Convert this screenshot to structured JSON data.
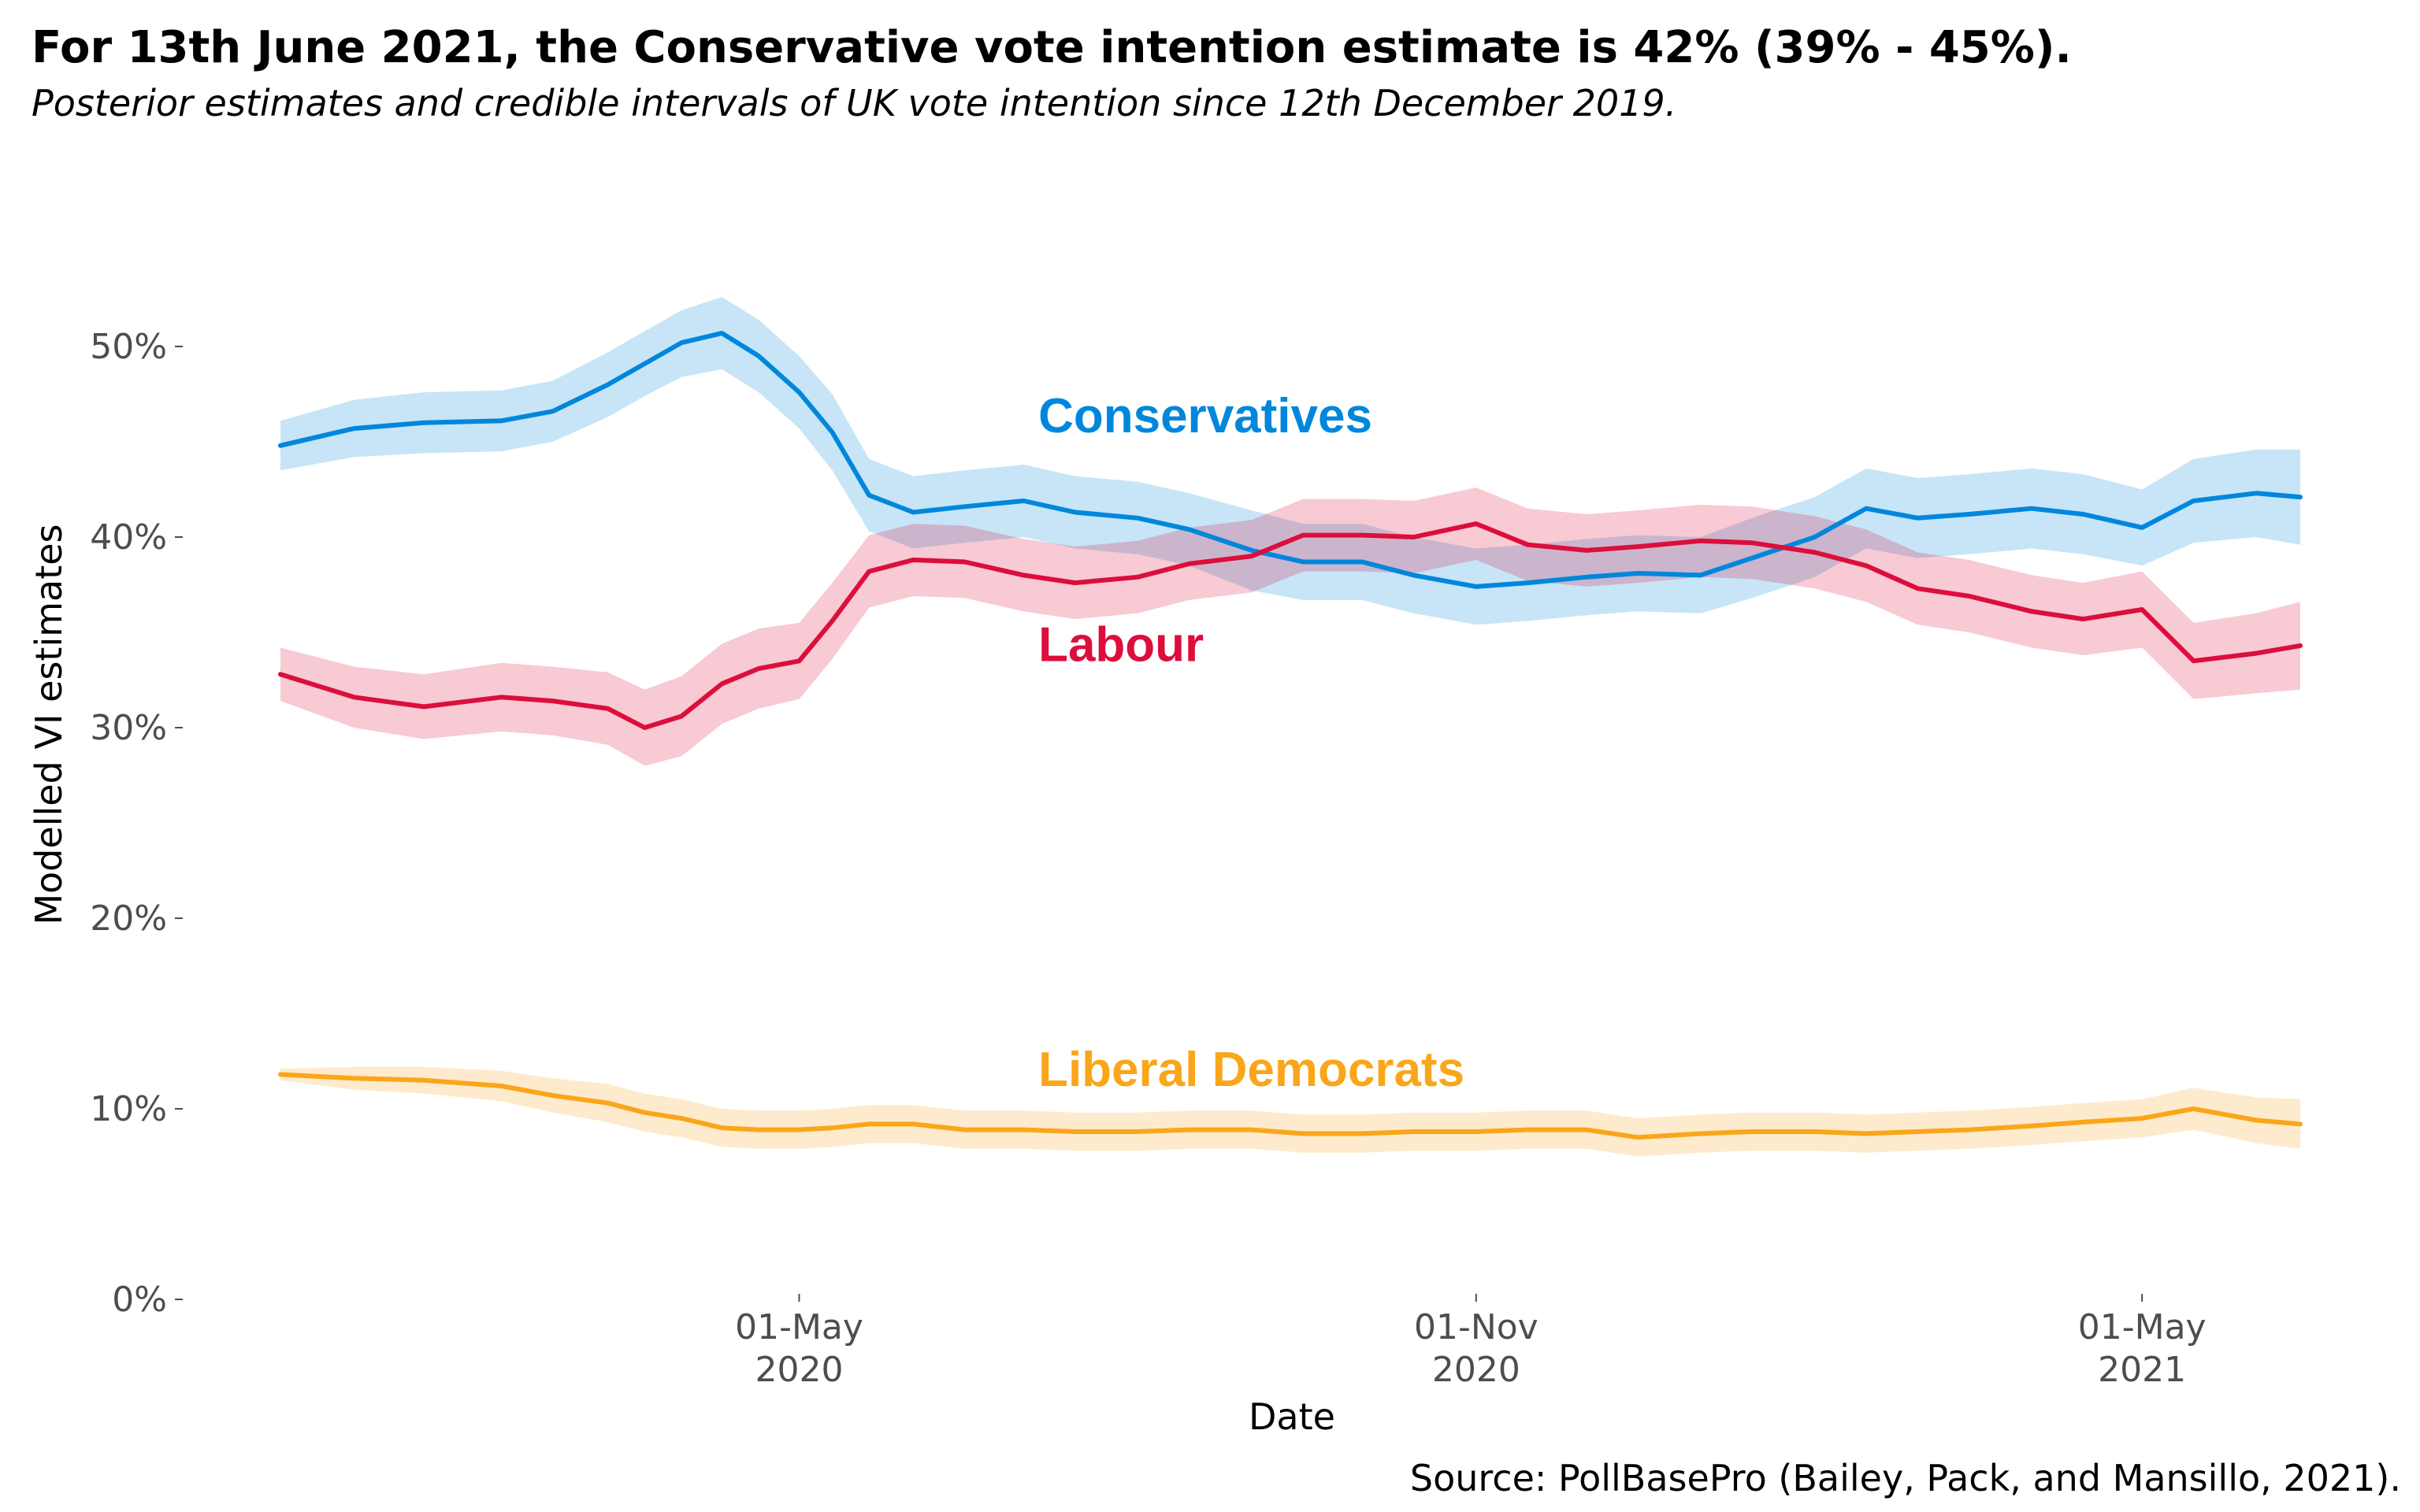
{
  "header": {
    "title": "For 13th June 2021, the Conservative vote intention estimate is 42% (39% - 45%).",
    "subtitle": "Posterior estimates and credible intervals of UK vote intention since 12th December 2019."
  },
  "footer": {
    "source": "Source: PollBasePro (Bailey, Pack, and Mansillo, 2021)."
  },
  "chart_data": {
    "type": "line",
    "title": "For 13th June 2021, the Conservative vote intention estimate is 42% (39% - 45%).",
    "subtitle": "Posterior estimates and credible intervals of UK vote intention since 12th December 2019.",
    "xlabel": "Date",
    "ylabel": "Modelled VI estimates",
    "xlim": [
      "2019-12-12",
      "2021-06-13"
    ],
    "ylim": [
      0,
      55
    ],
    "grid": false,
    "legend": "none",
    "y_ticks": [
      {
        "value": 0,
        "label": "0%"
      },
      {
        "value": 10,
        "label": "10%"
      },
      {
        "value": 20,
        "label": "20%"
      },
      {
        "value": 30,
        "label": "30%"
      },
      {
        "value": 40,
        "label": "40%"
      },
      {
        "value": 50,
        "label": "50%"
      }
    ],
    "x_ticks": [
      {
        "date": "2020-05-01",
        "label_line1": "01-May",
        "label_line2": "2020"
      },
      {
        "date": "2020-11-01",
        "label_line1": "01-Nov",
        "label_line2": "2020"
      },
      {
        "date": "2021-05-01",
        "label_line1": "01-May",
        "label_line2": "2021"
      }
    ],
    "series": [
      {
        "name": "Conservatives",
        "color": "#0087DC",
        "label_position": {
          "date": "2020-07-05",
          "value": 45.5
        },
        "x": [
          "2019-12-12",
          "2020-01-01",
          "2020-01-20",
          "2020-02-10",
          "2020-02-24",
          "2020-03-10",
          "2020-03-20",
          "2020-03-30",
          "2020-04-10",
          "2020-04-20",
          "2020-05-01",
          "2020-05-10",
          "2020-05-20",
          "2020-06-01",
          "2020-06-15",
          "2020-07-01",
          "2020-07-15",
          "2020-08-01",
          "2020-08-15",
          "2020-09-01",
          "2020-09-15",
          "2020-10-01",
          "2020-10-15",
          "2020-11-01",
          "2020-11-15",
          "2020-12-01",
          "2020-12-15",
          "2021-01-01",
          "2021-01-15",
          "2021-02-01",
          "2021-02-15",
          "2021-03-01",
          "2021-03-15",
          "2021-04-01",
          "2021-04-15",
          "2021-05-01",
          "2021-05-15",
          "2021-06-01",
          "2021-06-13"
        ],
        "values": [
          44.8,
          45.7,
          46.0,
          46.1,
          46.6,
          48.0,
          49.1,
          50.2,
          50.7,
          49.5,
          47.6,
          45.5,
          42.2,
          41.3,
          41.6,
          41.9,
          41.3,
          41.0,
          40.4,
          39.3,
          38.7,
          38.7,
          38.0,
          37.4,
          37.6,
          37.9,
          38.1,
          38.0,
          38.9,
          40.0,
          41.5,
          41.0,
          41.2,
          41.5,
          41.2,
          40.5,
          41.9,
          42.3,
          42.1
        ],
        "lower": [
          43.5,
          44.2,
          44.4,
          44.5,
          45.0,
          46.3,
          47.4,
          48.4,
          48.8,
          47.6,
          45.7,
          43.5,
          40.3,
          39.4,
          39.7,
          40.0,
          39.4,
          39.1,
          38.5,
          37.2,
          36.7,
          36.7,
          36.0,
          35.4,
          35.6,
          35.9,
          36.1,
          36.0,
          36.8,
          37.9,
          39.4,
          38.9,
          39.1,
          39.4,
          39.1,
          38.5,
          39.7,
          40.0,
          39.6
        ],
        "upper": [
          46.1,
          47.2,
          47.6,
          47.7,
          48.2,
          49.7,
          50.8,
          51.9,
          52.6,
          51.4,
          49.5,
          47.5,
          44.1,
          43.2,
          43.5,
          43.8,
          43.2,
          42.9,
          42.3,
          41.4,
          40.7,
          40.7,
          40.0,
          39.4,
          39.6,
          39.9,
          40.1,
          40.0,
          41.0,
          42.1,
          43.6,
          43.1,
          43.3,
          43.6,
          43.3,
          42.5,
          44.1,
          44.6,
          44.6
        ]
      },
      {
        "name": "Labour",
        "color": "#DC0E3C",
        "label_position": {
          "date": "2020-07-05",
          "value": 33.5
        },
        "x": [
          "2019-12-12",
          "2020-01-01",
          "2020-01-20",
          "2020-02-10",
          "2020-02-24",
          "2020-03-10",
          "2020-03-20",
          "2020-03-30",
          "2020-04-10",
          "2020-04-20",
          "2020-05-01",
          "2020-05-10",
          "2020-05-20",
          "2020-06-01",
          "2020-06-15",
          "2020-07-01",
          "2020-07-15",
          "2020-08-01",
          "2020-08-15",
          "2020-09-01",
          "2020-09-15",
          "2020-10-01",
          "2020-10-15",
          "2020-11-01",
          "2020-11-15",
          "2020-12-01",
          "2020-12-15",
          "2021-01-01",
          "2021-01-15",
          "2021-02-01",
          "2021-02-15",
          "2021-03-01",
          "2021-03-15",
          "2021-04-01",
          "2021-04-15",
          "2021-05-01",
          "2021-05-15",
          "2021-06-01",
          "2021-06-13"
        ],
        "values": [
          32.8,
          31.6,
          31.1,
          31.6,
          31.4,
          31.0,
          30.0,
          30.6,
          32.3,
          33.1,
          33.5,
          35.6,
          38.2,
          38.8,
          38.7,
          38.0,
          37.6,
          37.9,
          38.6,
          39.0,
          40.1,
          40.1,
          40.0,
          40.7,
          39.6,
          39.3,
          39.5,
          39.8,
          39.7,
          39.2,
          38.5,
          37.3,
          36.9,
          36.1,
          35.7,
          36.2,
          33.5,
          33.9,
          34.3
        ],
        "lower": [
          31.4,
          30.0,
          29.4,
          29.8,
          29.6,
          29.1,
          28.0,
          28.5,
          30.2,
          31.0,
          31.5,
          33.6,
          36.3,
          36.9,
          36.8,
          36.1,
          35.7,
          36.0,
          36.7,
          37.1,
          38.2,
          38.2,
          38.1,
          38.8,
          37.7,
          37.4,
          37.6,
          37.9,
          37.8,
          37.3,
          36.6,
          35.4,
          35.0,
          34.2,
          33.8,
          34.2,
          31.5,
          31.8,
          32.0
        ],
        "upper": [
          34.2,
          33.2,
          32.8,
          33.4,
          33.2,
          32.9,
          32.0,
          32.7,
          34.4,
          35.2,
          35.5,
          37.6,
          40.1,
          40.7,
          40.6,
          39.9,
          39.5,
          39.8,
          40.5,
          40.9,
          42.0,
          42.0,
          41.9,
          42.6,
          41.5,
          41.2,
          41.4,
          41.7,
          41.6,
          41.1,
          40.4,
          39.2,
          38.8,
          38.0,
          37.6,
          38.2,
          35.5,
          36.0,
          36.6
        ]
      },
      {
        "name": "Liberal Democrats",
        "color": "#FAA61A",
        "label_position": {
          "date": "2020-07-05",
          "value": 11.2
        },
        "x": [
          "2019-12-12",
          "2020-01-01",
          "2020-01-20",
          "2020-02-10",
          "2020-02-24",
          "2020-03-10",
          "2020-03-20",
          "2020-03-30",
          "2020-04-10",
          "2020-04-20",
          "2020-05-01",
          "2020-05-10",
          "2020-05-20",
          "2020-06-01",
          "2020-06-15",
          "2020-07-01",
          "2020-07-15",
          "2020-08-01",
          "2020-08-15",
          "2020-09-01",
          "2020-09-15",
          "2020-10-01",
          "2020-10-15",
          "2020-11-01",
          "2020-11-15",
          "2020-12-01",
          "2020-12-15",
          "2021-01-01",
          "2021-01-15",
          "2021-02-01",
          "2021-02-15",
          "2021-03-01",
          "2021-03-15",
          "2021-04-01",
          "2021-04-15",
          "2021-05-01",
          "2021-05-15",
          "2021-06-01",
          "2021-06-13"
        ],
        "values": [
          11.8,
          11.6,
          11.5,
          11.2,
          10.7,
          10.3,
          9.8,
          9.5,
          9.0,
          8.9,
          8.9,
          9.0,
          9.2,
          9.2,
          8.9,
          8.9,
          8.8,
          8.8,
          8.9,
          8.9,
          8.7,
          8.7,
          8.8,
          8.8,
          8.9,
          8.9,
          8.5,
          8.7,
          8.8,
          8.8,
          8.7,
          8.8,
          8.9,
          9.1,
          9.3,
          9.5,
          10.0,
          9.4,
          9.2
        ],
        "lower": [
          11.5,
          11.0,
          10.8,
          10.4,
          9.8,
          9.3,
          8.8,
          8.5,
          8.0,
          7.9,
          7.9,
          8.0,
          8.2,
          8.2,
          7.9,
          7.9,
          7.8,
          7.8,
          7.9,
          7.9,
          7.7,
          7.7,
          7.8,
          7.8,
          7.9,
          7.9,
          7.5,
          7.7,
          7.8,
          7.8,
          7.7,
          7.8,
          7.9,
          8.1,
          8.3,
          8.5,
          8.9,
          8.2,
          7.9
        ],
        "upper": [
          12.1,
          12.2,
          12.2,
          12.0,
          11.6,
          11.3,
          10.8,
          10.5,
          10.0,
          9.9,
          9.9,
          10.0,
          10.2,
          10.2,
          9.9,
          9.9,
          9.8,
          9.8,
          9.9,
          9.9,
          9.7,
          9.7,
          9.8,
          9.8,
          9.9,
          9.9,
          9.5,
          9.7,
          9.8,
          9.8,
          9.7,
          9.8,
          9.9,
          10.1,
          10.3,
          10.5,
          11.1,
          10.6,
          10.5
        ]
      }
    ]
  }
}
